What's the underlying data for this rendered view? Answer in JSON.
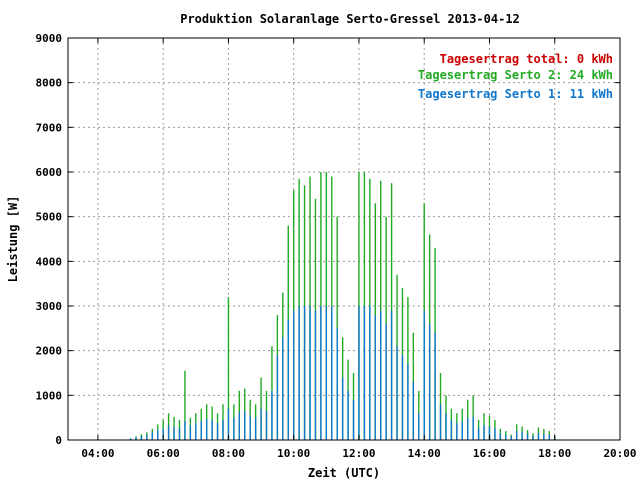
{
  "chart_data": {
    "type": "bar",
    "title": "Produktion Solaranlage Serto-Gressel 2013-04-12",
    "xlabel": "Zeit (UTC)",
    "ylabel": "Leistung [W]",
    "ylim": [
      0,
      9000
    ],
    "xlim": [
      "03:05",
      "20:00"
    ],
    "y_ticks": [
      "0",
      "1000",
      "2000",
      "3000",
      "4000",
      "5000",
      "6000",
      "7000",
      "8000",
      "9000"
    ],
    "x_ticks": [
      "04:00",
      "06:00",
      "08:00",
      "10:00",
      "12:00",
      "14:00",
      "16:00",
      "18:00",
      "20:00"
    ],
    "grid": true,
    "legend_position": "top-right",
    "legend": [
      {
        "text": "Tagesertrag total: 0 kWh",
        "color": "#cc0000"
      },
      {
        "text": "Tagesertrag Serto 2: 24 kWh",
        "color": "#22aa22"
      },
      {
        "text": "Tagesertrag Serto 1: 11 kWh",
        "color": "#1177cc"
      }
    ],
    "series": [
      {
        "name": "Serto 2",
        "color": "#22aa22",
        "x": [
          "05:00",
          "05:10",
          "05:20",
          "05:30",
          "05:40",
          "05:50",
          "06:00",
          "06:10",
          "06:20",
          "06:30",
          "06:40",
          "06:50",
          "07:00",
          "07:10",
          "07:20",
          "07:30",
          "07:40",
          "07:50",
          "08:00",
          "08:10",
          "08:20",
          "08:30",
          "08:40",
          "08:50",
          "09:00",
          "09:10",
          "09:20",
          "09:30",
          "09:40",
          "09:50",
          "10:00",
          "10:10",
          "10:20",
          "10:30",
          "10:40",
          "10:50",
          "11:00",
          "11:10",
          "11:20",
          "11:30",
          "11:40",
          "11:50",
          "12:00",
          "12:10",
          "12:20",
          "12:30",
          "12:40",
          "12:50",
          "13:00",
          "13:10",
          "13:20",
          "13:30",
          "13:40",
          "13:50",
          "14:00",
          "14:10",
          "14:20",
          "14:30",
          "14:40",
          "14:50",
          "15:00",
          "15:10",
          "15:20",
          "15:30",
          "15:40",
          "15:50",
          "16:00",
          "16:10",
          "16:20",
          "16:30",
          "16:40",
          "16:50",
          "17:00",
          "17:10",
          "17:20",
          "17:30",
          "17:40",
          "17:50",
          "18:00"
        ],
        "values": [
          40,
          80,
          130,
          170,
          250,
          350,
          450,
          600,
          520,
          450,
          1550,
          500,
          600,
          700,
          800,
          750,
          600,
          800,
          3200,
          800,
          1100,
          1150,
          900,
          800,
          1400,
          1100,
          2100,
          2800,
          3300,
          4800,
          5600,
          5850,
          5700,
          5900,
          5400,
          6000,
          6000,
          5900,
          5000,
          2300,
          1800,
          1500,
          6000,
          6000,
          5850,
          5300,
          5800,
          5000,
          5750,
          3700,
          3400,
          3200,
          2400,
          1100,
          5300,
          4600,
          4300,
          1500,
          1000,
          700,
          600,
          700,
          900,
          1000,
          450,
          600,
          550,
          450,
          250,
          200,
          120,
          350,
          300,
          220,
          150,
          280,
          250,
          200,
          100
        ]
      },
      {
        "name": "Serto 1",
        "color": "#1177cc",
        "x": [
          "05:00",
          "05:10",
          "05:20",
          "05:30",
          "05:40",
          "05:50",
          "06:00",
          "06:10",
          "06:20",
          "06:30",
          "06:40",
          "06:50",
          "07:00",
          "07:10",
          "07:20",
          "07:30",
          "07:40",
          "07:50",
          "08:00",
          "08:10",
          "08:20",
          "08:30",
          "08:40",
          "08:50",
          "09:00",
          "09:10",
          "09:20",
          "09:30",
          "09:40",
          "09:50",
          "10:00",
          "10:10",
          "10:20",
          "10:30",
          "10:40",
          "10:50",
          "11:00",
          "11:10",
          "11:20",
          "11:30",
          "11:40",
          "11:50",
          "12:00",
          "12:10",
          "12:20",
          "12:30",
          "12:40",
          "12:50",
          "13:00",
          "13:10",
          "13:20",
          "13:30",
          "13:40",
          "13:50",
          "14:00",
          "14:10",
          "14:20",
          "14:30",
          "14:40",
          "14:50",
          "15:00",
          "15:10",
          "15:20",
          "15:30",
          "15:40",
          "15:50",
          "16:00",
          "16:10",
          "16:20",
          "16:30",
          "16:40",
          "16:50",
          "17:00",
          "17:10",
          "17:20",
          "17:30",
          "17:40",
          "17:50",
          "18:00"
        ],
        "values": [
          30,
          60,
          90,
          120,
          170,
          220,
          250,
          330,
          300,
          260,
          420,
          330,
          380,
          420,
          470,
          440,
          380,
          450,
          700,
          500,
          620,
          650,
          550,
          500,
          700,
          650,
          1100,
          1900,
          2300,
          2700,
          2900,
          3000,
          3000,
          3000,
          2900,
          3000,
          3000,
          3000,
          2500,
          1400,
          1100,
          900,
          3000,
          3000,
          3000,
          2800,
          2900,
          2600,
          2900,
          2100,
          1900,
          1700,
          1300,
          600,
          2900,
          2600,
          2400,
          800,
          600,
          450,
          380,
          420,
          500,
          520,
          280,
          330,
          300,
          270,
          150,
          120,
          80,
          200,
          180,
          140,
          90,
          160,
          140,
          120,
          60
        ]
      }
    ]
  }
}
